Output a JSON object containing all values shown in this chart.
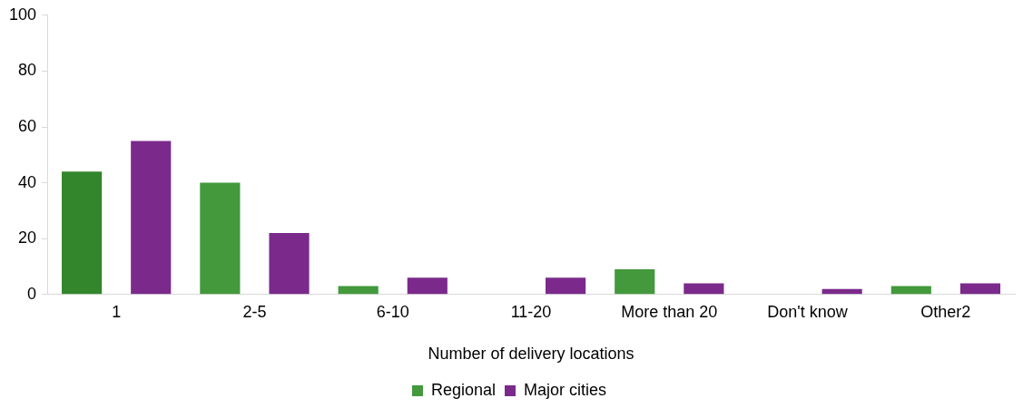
{
  "chart_data": {
    "type": "bar",
    "xlabel": "Number of delivery locations",
    "categories": [
      "1",
      "2-5",
      "6-10",
      "11-20",
      "More than 20",
      "Don't know",
      "Other2"
    ],
    "series": [
      {
        "name": "Regional",
        "color": "#43993c",
        "colors": [
          "#33862c",
          "#43993c",
          "#43993c",
          "#43993c",
          "#43993c",
          "#43993c",
          "#43993c"
        ],
        "values": [
          44,
          40,
          3,
          null,
          9,
          null,
          3
        ]
      },
      {
        "name": "Major cities",
        "color": "#7b2a8b",
        "values": [
          55,
          22,
          6,
          6,
          4,
          2,
          4
        ]
      }
    ],
    "ylim": [
      0,
      100
    ],
    "yticks": [
      0,
      20,
      40,
      60,
      80,
      100
    ],
    "grid": false,
    "legend": "bottom"
  }
}
